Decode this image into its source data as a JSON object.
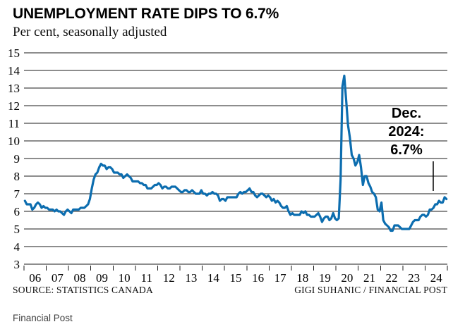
{
  "chart_data": {
    "type": "line",
    "title": "UNEMPLOYMENT RATE DIPS TO 6.7%",
    "subtitle": "Per cent, seasonally adjusted",
    "ylabel": "Per cent, seasonally adjusted",
    "ylim": [
      3,
      15
    ],
    "yticks": [
      3,
      4,
      5,
      6,
      7,
      8,
      9,
      10,
      11,
      12,
      13,
      14,
      15
    ],
    "x_tick_labels": [
      "06",
      "07",
      "08",
      "09",
      "10",
      "11",
      "12",
      "13",
      "14",
      "15",
      "16",
      "17",
      "18",
      "19",
      "20",
      "21",
      "22",
      "23",
      "24"
    ],
    "grid": "horizontal",
    "legend": "none",
    "line_color": "#0c6daf",
    "grid_color": "#1b1b1b",
    "series": [
      {
        "name": "Unemployment rate (%)",
        "values": [
          6.6,
          6.4,
          6.4,
          6.4,
          6.1,
          6.2,
          6.4,
          6.5,
          6.4,
          6.2,
          6.3,
          6.2,
          6.2,
          6.1,
          6.1,
          6.1,
          6.0,
          6.1,
          6.0,
          6.0,
          5.9,
          5.8,
          6.0,
          6.1,
          6.0,
          5.9,
          6.1,
          6.1,
          6.1,
          6.1,
          6.2,
          6.2,
          6.2,
          6.3,
          6.4,
          6.7,
          7.3,
          7.8,
          8.1,
          8.2,
          8.5,
          8.7,
          8.6,
          8.6,
          8.4,
          8.5,
          8.5,
          8.4,
          8.2,
          8.2,
          8.2,
          8.1,
          8.1,
          7.9,
          8.0,
          8.1,
          8.0,
          7.9,
          7.7,
          7.7,
          7.7,
          7.7,
          7.6,
          7.6,
          7.5,
          7.5,
          7.3,
          7.3,
          7.3,
          7.4,
          7.5,
          7.5,
          7.6,
          7.5,
          7.3,
          7.4,
          7.4,
          7.3,
          7.3,
          7.4,
          7.4,
          7.4,
          7.3,
          7.2,
          7.1,
          7.1,
          7.2,
          7.2,
          7.1,
          7.1,
          7.2,
          7.1,
          7.0,
          7.0,
          7.0,
          7.2,
          7.0,
          7.0,
          6.9,
          7.0,
          7.0,
          7.1,
          7.0,
          7.0,
          6.9,
          6.6,
          6.7,
          6.7,
          6.6,
          6.8,
          6.8,
          6.8,
          6.8,
          6.8,
          6.8,
          7.0,
          7.1,
          7.0,
          7.1,
          7.1,
          7.2,
          7.3,
          7.1,
          7.1,
          6.9,
          6.8,
          6.9,
          7.0,
          7.0,
          6.9,
          6.8,
          6.9,
          6.8,
          6.6,
          6.7,
          6.5,
          6.6,
          6.5,
          6.3,
          6.2,
          6.2,
          6.3,
          6.0,
          5.8,
          5.9,
          5.8,
          5.8,
          5.8,
          5.8,
          6.0,
          5.9,
          6.0,
          5.8,
          5.8,
          5.7,
          5.7,
          5.7,
          5.8,
          5.9,
          5.7,
          5.4,
          5.6,
          5.7,
          5.7,
          5.5,
          5.6,
          5.9,
          5.6,
          5.5,
          5.6,
          7.8,
          13.1,
          13.7,
          12.3,
          10.9,
          10.2,
          9.2,
          9.0,
          8.6,
          8.8,
          9.2,
          8.5,
          7.5,
          8.0,
          8.0,
          7.6,
          7.4,
          7.1,
          7.0,
          6.8,
          6.1,
          6.0,
          6.5,
          5.5,
          5.3,
          5.2,
          5.1,
          4.9,
          4.9,
          5.2,
          5.2,
          5.2,
          5.1,
          5.0,
          5.0,
          5.0,
          5.0,
          5.0,
          5.2,
          5.4,
          5.5,
          5.5,
          5.5,
          5.7,
          5.8,
          5.8,
          5.7,
          5.8,
          6.1,
          6.1,
          6.2,
          6.4,
          6.4,
          6.6,
          6.5,
          6.5,
          6.8,
          6.7
        ]
      }
    ],
    "annotation": {
      "text": "Dec. 2024: 6.7%",
      "lines": [
        "Dec.",
        "2024:",
        "6.7%"
      ]
    }
  },
  "footer": {
    "source": "SOURCE: STATISTICS CANADA",
    "credit": "GIGI SUHANIC / FINANCIAL POST"
  },
  "caption": "Financial Post"
}
